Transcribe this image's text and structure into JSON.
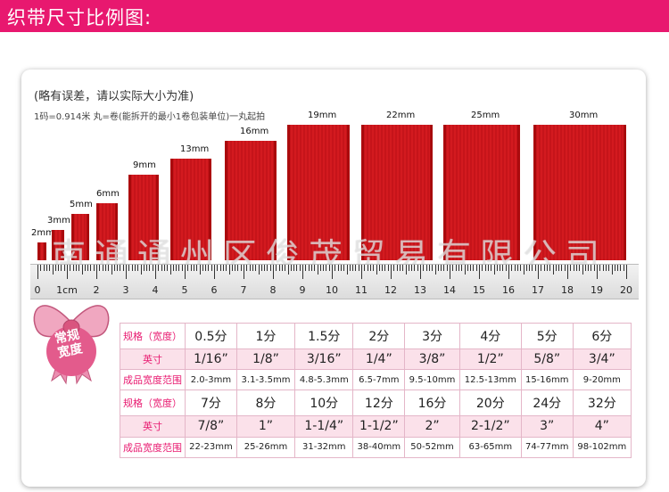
{
  "header": {
    "title": "织带尺寸比例图:",
    "color": "#e8186f"
  },
  "note": "(略有误差，请以实际大小为准)",
  "subnote": "1码=0.914米 丸=卷(能拆开的最小1卷包装单位)一丸起拍",
  "watermark": "南通通州区俊茂贸易有限公司",
  "ribbons": [
    {
      "label": "2mm",
      "width_mm": 2
    },
    {
      "label": "3mm",
      "width_mm": 3
    },
    {
      "label": "5mm",
      "width_mm": 5
    },
    {
      "label": "6mm",
      "width_mm": 6
    },
    {
      "label": "9mm",
      "width_mm": 9
    },
    {
      "label": "13mm",
      "width_mm": 13
    },
    {
      "label": "16mm",
      "width_mm": 16
    },
    {
      "label": "19mm",
      "width_mm": 19
    },
    {
      "label": "22mm",
      "width_mm": 22
    },
    {
      "label": "25mm",
      "width_mm": 25
    },
    {
      "label": "30mm",
      "width_mm": 30
    }
  ],
  "ruler": {
    "labels": [
      "0",
      "1cm",
      "2",
      "3",
      "4",
      "5",
      "6",
      "7",
      "8",
      "9",
      "10",
      "11",
      "12",
      "13",
      "14",
      "15",
      "16",
      "17",
      "18",
      "19",
      "20"
    ]
  },
  "badge": {
    "line1": "常规",
    "line2": "宽度"
  },
  "table": {
    "rows": [
      {
        "header": "规格（宽度）",
        "cells": [
          "0.5分",
          "1分",
          "1.5分",
          "2分",
          "3分",
          "4分",
          "5分",
          "6分"
        ]
      },
      {
        "header": "英寸",
        "cells": [
          "1/16”",
          "1/8”",
          "3/16”",
          "1/4”",
          "3/8”",
          "1/2”",
          "5/8”",
          "3/4”"
        ]
      },
      {
        "header": "成品宽度范围",
        "cells": [
          "2.0-3mm",
          "3.1-3.5mm",
          "4.8-5.3mm",
          "6.5-7mm",
          "9.5-10mm",
          "12.5-13mm",
          "15-16mm",
          "9-20mm"
        ]
      },
      {
        "header": "规格（宽度）",
        "cells": [
          "7分",
          "8分",
          "10分",
          "12分",
          "16分",
          "20分",
          "24分",
          "32分"
        ]
      },
      {
        "header": "英寸",
        "cells": [
          "7/8”",
          "1”",
          "1-1/4”",
          "1-1/2”",
          "2”",
          "2-1/2”",
          "3”",
          "4”"
        ]
      },
      {
        "header": "成品宽度范围",
        "cells": [
          "22-23mm",
          "25-26mm",
          "31-32mm",
          "38-40mm",
          "50-52mm",
          "63-65mm",
          "74-77mm",
          "98-102mm"
        ]
      }
    ]
  }
}
